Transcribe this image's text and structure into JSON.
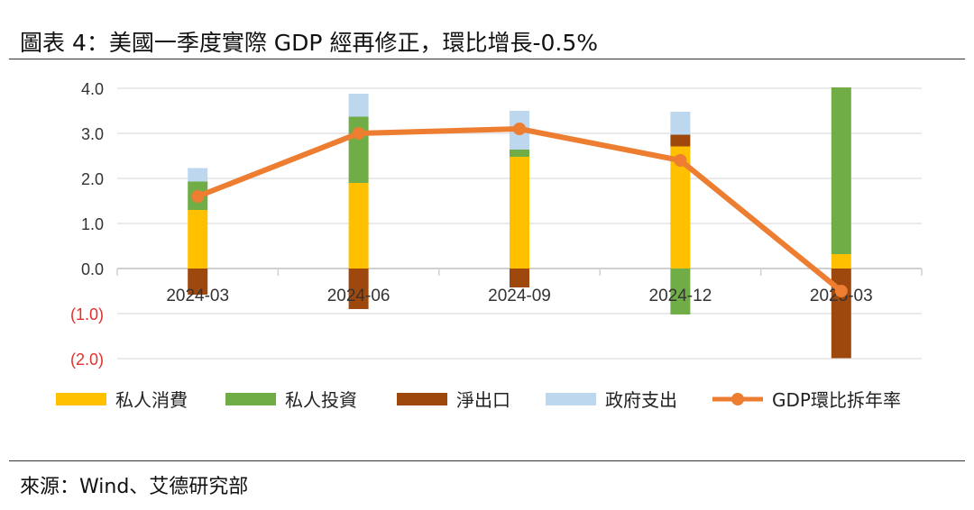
{
  "title": "圖表 4：美國一季度實際 GDP 經再修正，環比增長-0.5%",
  "source": "來源：Wind、艾德研究部",
  "chart_data": {
    "type": "bar+line",
    "stacked": true,
    "categories": [
      "2024-03",
      "2024-06",
      "2024-09",
      "2024-12",
      "2025-03"
    ],
    "ylim": [
      -2.0,
      4.0
    ],
    "yticks": [
      4.0,
      3.0,
      2.0,
      1.0,
      0.0,
      -1.0,
      -2.0
    ],
    "ytick_labels": [
      "4.0",
      "3.0",
      "2.0",
      "1.0",
      "0.0",
      "(1.0)",
      "(2.0)"
    ],
    "negative_tick_color": "#e03030",
    "grid": true,
    "legend": "bottom",
    "series": [
      {
        "name": "私人消費",
        "kind": "bar",
        "color": "#FFC000",
        "values": [
          1.3,
          1.9,
          2.48,
          2.71,
          0.32
        ]
      },
      {
        "name": "私人投資",
        "kind": "bar",
        "color": "#70AD47",
        "values": [
          0.63,
          1.47,
          0.16,
          -1.02,
          3.7
        ]
      },
      {
        "name": "淨出口",
        "kind": "bar",
        "color": "#9E480E",
        "values": [
          -0.58,
          -0.9,
          -0.42,
          0.26,
          -1.99
        ]
      },
      {
        "name": "政府支出",
        "kind": "bar",
        "color": "#BDD7EE",
        "values": [
          0.3,
          0.51,
          0.86,
          0.51,
          0.0
        ]
      },
      {
        "name": "GDP環比拆年率",
        "kind": "line",
        "color": "#ED7D31",
        "values": [
          1.6,
          3.0,
          3.1,
          2.4,
          -0.5
        ]
      }
    ]
  }
}
